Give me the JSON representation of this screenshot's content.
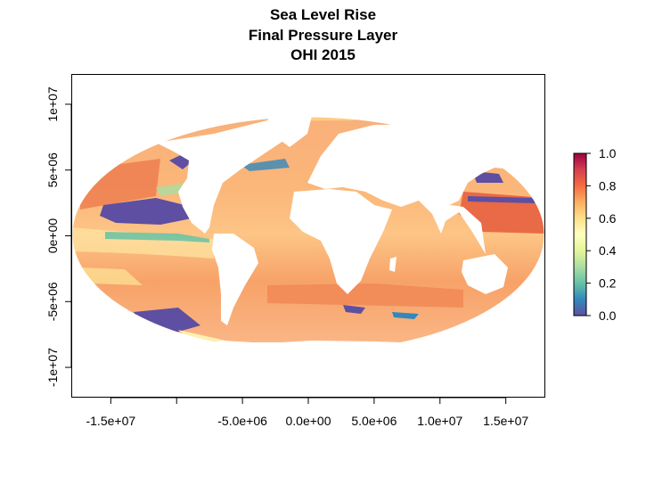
{
  "title": {
    "line1": "Sea Level Rise",
    "line2": "Final Pressure Layer",
    "line3": "OHI 2015"
  },
  "map": {
    "projection": "Mollweide",
    "x_ticks": [
      {
        "value": -15000000,
        "label": "-1.5e+07"
      },
      {
        "value": -10000000,
        "label": ""
      },
      {
        "value": -5000000,
        "label": "-5.0e+06"
      },
      {
        "value": 0,
        "label": "0.0e+00"
      },
      {
        "value": 5000000,
        "label": "5.0e+06"
      },
      {
        "value": 10000000,
        "label": "1.0e+07"
      },
      {
        "value": 15000000,
        "label": "1.5e+07"
      }
    ],
    "y_ticks": [
      {
        "value": 10000000,
        "label": "1e+07"
      },
      {
        "value": 5000000,
        "label": "5e+06"
      },
      {
        "value": 0,
        "label": "0e+00"
      },
      {
        "value": -5000000,
        "label": "-5e+06"
      },
      {
        "value": -10000000,
        "label": "-1e+07"
      }
    ],
    "xlim": [
      -18000000,
      18000000
    ],
    "ylim": [
      -12300000,
      12300000
    ]
  },
  "legend": {
    "min": 0.0,
    "max": 1.0,
    "ticks": [
      {
        "value": 1.0,
        "label": "1.0"
      },
      {
        "value": 0.8,
        "label": "0.8"
      },
      {
        "value": 0.6,
        "label": "0.6"
      },
      {
        "value": 0.4,
        "label": "0.4"
      },
      {
        "value": 0.2,
        "label": "0.2"
      },
      {
        "value": 0.0,
        "label": "0.0"
      }
    ],
    "colors": [
      "#5E4FA2",
      "#3288BD",
      "#66C2A5",
      "#ABDDA4",
      "#E6F598",
      "#FFFFBF",
      "#FEE08B",
      "#FDAE61",
      "#F46D43",
      "#D53E4F",
      "#9E0142"
    ]
  }
}
